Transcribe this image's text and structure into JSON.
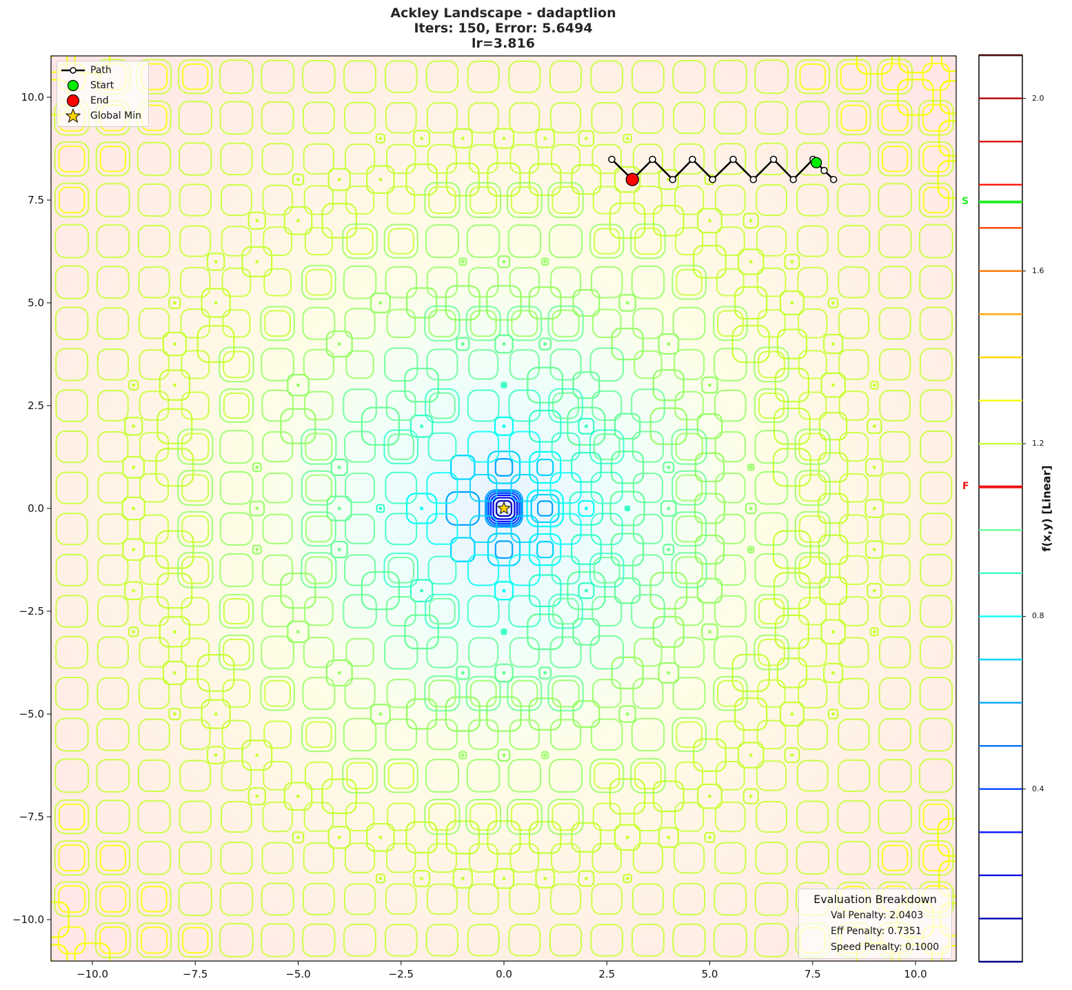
{
  "title": {
    "line1": "Ackley Landscape - dadaptlion",
    "line2": "Iters: 150, Error: 5.6494",
    "line3": "lr=3.816"
  },
  "legend": {
    "items": [
      {
        "label": "Path",
        "symbol": "line-with-white-circle",
        "color": "#000000"
      },
      {
        "label": "Start",
        "symbol": "circle",
        "color": "#00ee00"
      },
      {
        "label": "End",
        "symbol": "circle",
        "color": "#ff0000"
      },
      {
        "label": "Global Min",
        "symbol": "star",
        "color": "#ffd700"
      }
    ]
  },
  "evaluation": {
    "title": "Evaluation Breakdown",
    "lines": [
      "Val Penalty: 2.0403",
      "Eff Penalty: 0.7351",
      "Speed Penalty: 0.1000"
    ]
  },
  "colorbar": {
    "label": "f(x,y) [Linear]",
    "ticks": [
      "2.0",
      "1.6",
      "1.2",
      "0.8",
      "0.4"
    ],
    "tick_values": [
      2.0,
      1.6,
      1.2,
      0.8,
      0.4
    ],
    "range": [
      0.0,
      2.1
    ],
    "start_marker": {
      "label": "S",
      "value": 1.76,
      "color": "#22ee22"
    },
    "final_marker": {
      "label": "F",
      "value": 1.1,
      "color": "#ee1111"
    }
  },
  "axes": {
    "x_ticks": [
      "−10.0",
      "−7.5",
      "−5.0",
      "−2.5",
      "0.0",
      "2.5",
      "5.0",
      "7.5",
      "10.0"
    ],
    "y_ticks": [
      "10.0",
      "7.5",
      "5.0",
      "2.5",
      "0.0",
      "−2.5",
      "−5.0",
      "−7.5",
      "−10.0"
    ]
  },
  "chart_data": {
    "type": "contour",
    "title": "Ackley Landscape - dadaptlion\nIters: 150, Error: 5.6494\nlr=3.816",
    "xlabel": "",
    "ylabel": "",
    "xlim": [
      -11,
      11
    ],
    "ylim": [
      -11,
      11
    ],
    "x_ticks": [
      -10.0,
      -7.5,
      -5.0,
      -2.5,
      0.0,
      2.5,
      5.0,
      7.5,
      10.0
    ],
    "y_ticks": [
      -10.0,
      -7.5,
      -5.0,
      -2.5,
      0.0,
      2.5,
      5.0,
      7.5,
      10.0
    ],
    "function": "Ackley (contour lines, log-scaled values shown on linear colorbar)",
    "colormap": "jet",
    "contour_levels": [
      0.1,
      0.2,
      0.3,
      0.4,
      0.5,
      0.6,
      0.7,
      0.8,
      0.9,
      1.0,
      1.1,
      1.2,
      1.3,
      1.4,
      1.5,
      1.6,
      1.7,
      1.8,
      1.9,
      2.0,
      2.1
    ],
    "colorbar_label": "f(x,y) [Linear]",
    "colorbar_range": [
      0.0,
      2.1
    ],
    "series": [
      {
        "name": "Path",
        "type": "line",
        "x": [
          2.62,
          3.12,
          3.61,
          4.1,
          4.58,
          5.07,
          5.57,
          6.06,
          6.55,
          7.03,
          7.51,
          7.59,
          7.78,
          8.01
        ],
        "y": [
          8.49,
          8.0,
          8.49,
          8.0,
          8.49,
          8.0,
          8.49,
          8.0,
          8.49,
          8.0,
          8.49,
          8.41,
          8.22,
          8.0
        ]
      },
      {
        "name": "Start",
        "type": "scatter",
        "x": [
          7.59
        ],
        "y": [
          8.41
        ]
      },
      {
        "name": "End",
        "type": "scatter",
        "x": [
          3.12
        ],
        "y": [
          8.0
        ]
      },
      {
        "name": "Global Min",
        "type": "scatter",
        "x": [
          0.0
        ],
        "y": [
          0.0
        ]
      }
    ],
    "legend": [
      "Path",
      "Start",
      "End",
      "Global Min"
    ],
    "legend_position": "upper left",
    "annotations": [
      "Evaluation Breakdown",
      "Val Penalty: 2.0403",
      "Eff Penalty: 0.7351",
      "Speed Penalty: 0.1000",
      "S (start value on colorbar)",
      "F (final value on colorbar)"
    ],
    "grid": false
  }
}
